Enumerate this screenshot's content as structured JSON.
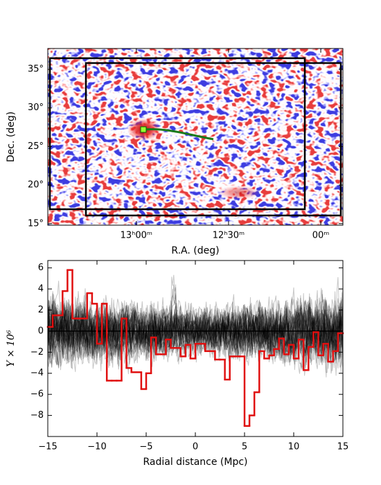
{
  "chart_data": [
    {
      "type": "map",
      "xlabel": "R.A. (deg)",
      "ylabel": "Dec. (deg)",
      "xlim": [
        202.2,
        178.2
      ],
      "ylim": [
        14.8,
        37.7
      ],
      "xticks": [
        {
          "value": 195,
          "label": "13ʰ00ᵐ"
        },
        {
          "value": 187.5,
          "label": "12ʰ30ᵐ"
        },
        {
          "value": 180,
          "label": "00ᵐ"
        }
      ],
      "yticks": [
        {
          "value": 15,
          "label": "15°"
        },
        {
          "value": 20,
          "label": "20°"
        },
        {
          "value": 25,
          "label": "25°"
        },
        {
          "value": 30,
          "label": "30°"
        },
        {
          "value": 35,
          "label": "35°"
        }
      ]
    },
    {
      "type": "line",
      "xlabel": "Radial distance (Mpc)",
      "ylabel": "Y × 10⁶",
      "xlim": [
        -15,
        15
      ],
      "ylim": [
        -10,
        6.7
      ],
      "xticks": [
        {
          "value": -15,
          "label": "−15"
        },
        {
          "value": -10,
          "label": "−10"
        },
        {
          "value": -5,
          "label": "−5"
        },
        0,
        5,
        10,
        15
      ],
      "yticks": [
        {
          "value": -8,
          "label": "−8"
        },
        {
          "value": -6,
          "label": "−6"
        },
        {
          "value": -4,
          "label": "−4"
        },
        {
          "value": -2,
          "label": "−2"
        },
        0,
        2,
        4,
        6
      ],
      "series": [
        {
          "color": "#e01010",
          "bins": [
            -15,
            -14.5,
            -14,
            -13.5,
            -13,
            -12.5,
            -12,
            -11.5,
            -11,
            -10.5,
            -10,
            -9.5,
            -9,
            -8.5,
            -8,
            -7.5,
            -7,
            -6.5,
            -6,
            -5.5,
            -5,
            -4.5,
            -4,
            -3.5,
            -3,
            -2.5,
            -2,
            -1.5,
            -1,
            -0.5,
            0,
            0.5,
            1,
            1.5,
            2,
            2.5,
            3,
            3.5,
            4,
            4.5,
            5,
            5.5,
            6,
            6.5,
            7,
            7.5,
            8,
            8.5,
            9,
            9.5,
            10,
            10.5,
            11,
            11.5,
            12,
            12.5,
            13,
            13.5,
            14,
            14.5,
            15
          ],
          "values": [
            0.4,
            1.5,
            1.5,
            3.8,
            5.8,
            1.2,
            1.2,
            1.2,
            3.6,
            2.6,
            -1.2,
            2.6,
            -4.7,
            -4.7,
            -4.7,
            1.2,
            -3.5,
            -3.9,
            -3.9,
            -5.5,
            -4.0,
            -0.6,
            -2.2,
            -2.2,
            -0.8,
            -1.6,
            -1.6,
            -2.4,
            -1.3,
            -2.6,
            -1.2,
            -1.2,
            -1.9,
            -1.9,
            -2.7,
            -2.7,
            -4.6,
            -2.4,
            -2.4,
            -2.4,
            -9.0,
            -8.0,
            -5.8,
            -1.9,
            -2.6,
            -2.3,
            -1.7,
            -0.7,
            -2.2,
            -1.3,
            -2.6,
            -0.8,
            -3.7,
            -1.5,
            -0.1,
            -2.3,
            -1.2,
            -2.9,
            -1.9,
            -0.2
          ]
        }
      ]
    }
  ]
}
